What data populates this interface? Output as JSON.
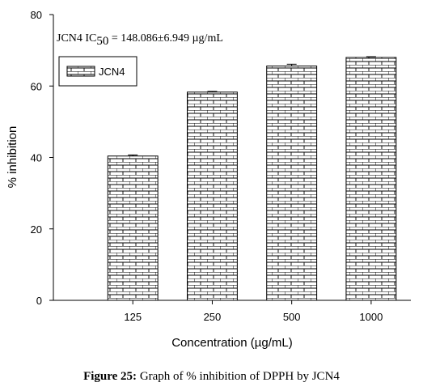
{
  "chart_data": {
    "type": "bar",
    "categories": [
      "125",
      "250",
      "500",
      "1000"
    ],
    "series": [
      {
        "name": "JCN4",
        "values": [
          40.4,
          58.3,
          65.6,
          68.0
        ],
        "errors": [
          0.3,
          0.2,
          0.5,
          0.2
        ]
      }
    ],
    "ylim": [
      0,
      80
    ],
    "yticks": [
      0,
      20,
      40,
      60,
      80
    ],
    "xlabel": "Concentration (µg/mL)",
    "ylabel": "% inhibition",
    "annotation": {
      "prefix": "JCN4 IC",
      "subscript": "50",
      "suffix": " = 148.086±6.949 µg/mL"
    },
    "legend_position": "top-left",
    "grid": false,
    "bar_pattern": "brick"
  },
  "caption": {
    "label": "Figure 25:",
    "text": "Graph of % inhibition of DPPH by JCN4"
  }
}
